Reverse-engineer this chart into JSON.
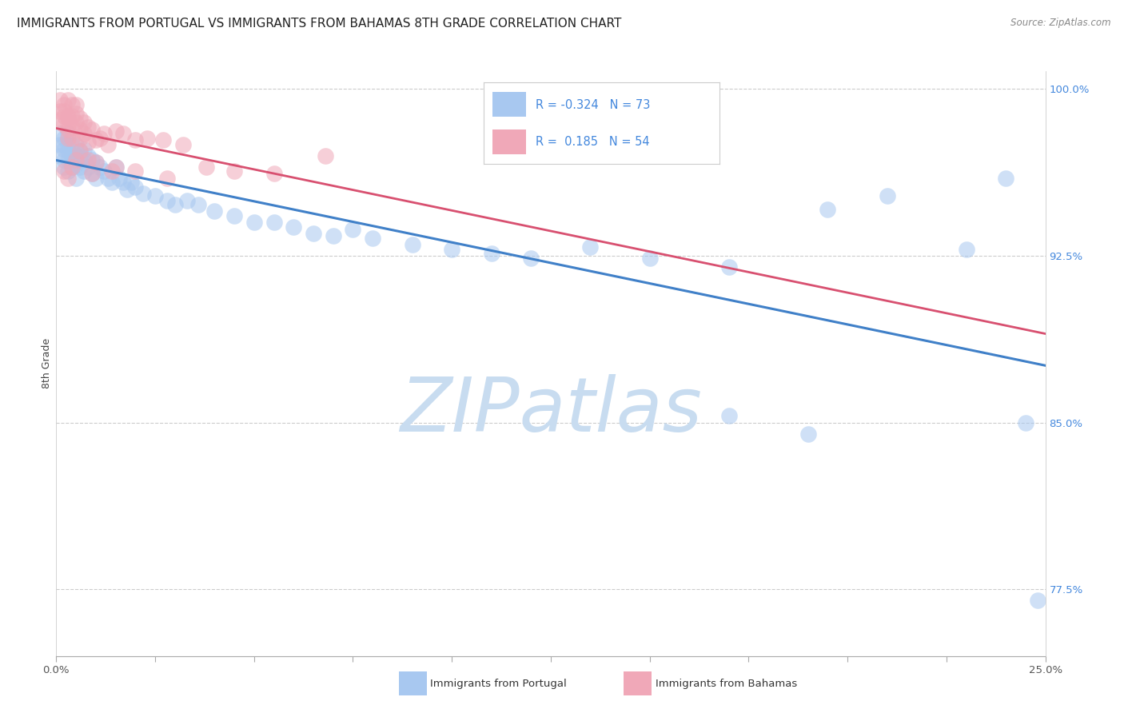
{
  "title": "IMMIGRANTS FROM PORTUGAL VS IMMIGRANTS FROM BAHAMAS 8TH GRADE CORRELATION CHART",
  "source": "Source: ZipAtlas.com",
  "ylabel": "8th Grade",
  "xlim": [
    0.0,
    0.25
  ],
  "ylim": [
    0.745,
    1.008
  ],
  "xticks": [
    0.0,
    0.025,
    0.05,
    0.075,
    0.1,
    0.125,
    0.15,
    0.175,
    0.2,
    0.225,
    0.25
  ],
  "xticklabels": [
    "0.0%",
    "",
    "",
    "",
    "",
    "",
    "",
    "",
    "",
    "",
    "25.0%"
  ],
  "yticks_right": [
    0.775,
    0.85,
    0.925,
    1.0
  ],
  "yticklabels_right": [
    "77.5%",
    "85.0%",
    "92.5%",
    "100.0%"
  ],
  "legend_blue_R": "-0.324",
  "legend_blue_N": "73",
  "legend_pink_R": "0.185",
  "legend_pink_N": "54",
  "blue_scatter_color": "#A8C8F0",
  "pink_scatter_color": "#F0A8B8",
  "blue_line_color": "#4080C8",
  "pink_line_color": "#D85070",
  "grid_color": "#CCCCCC",
  "watermark": "ZIPatlas",
  "watermark_color": "#C8DCF0",
  "title_fontsize": 11,
  "ylabel_fontsize": 9,
  "tick_fontsize": 9.5,
  "right_tick_color": "#4488DD",
  "blue_points_x": [
    0.001,
    0.001,
    0.001,
    0.002,
    0.002,
    0.002,
    0.002,
    0.002,
    0.003,
    0.003,
    0.003,
    0.003,
    0.003,
    0.004,
    0.004,
    0.004,
    0.004,
    0.005,
    0.005,
    0.005,
    0.005,
    0.006,
    0.006,
    0.006,
    0.007,
    0.007,
    0.007,
    0.008,
    0.008,
    0.009,
    0.009,
    0.01,
    0.01,
    0.011,
    0.012,
    0.013,
    0.014,
    0.015,
    0.016,
    0.017,
    0.018,
    0.019,
    0.02,
    0.022,
    0.025,
    0.028,
    0.03,
    0.033,
    0.036,
    0.04,
    0.045,
    0.05,
    0.055,
    0.06,
    0.065,
    0.07,
    0.075,
    0.08,
    0.09,
    0.1,
    0.11,
    0.12,
    0.135,
    0.15,
    0.17,
    0.195,
    0.21,
    0.23,
    0.24,
    0.17,
    0.19,
    0.245,
    0.248
  ],
  "blue_points_y": [
    0.98,
    0.975,
    0.97,
    0.978,
    0.973,
    0.968,
    0.965,
    0.975,
    0.972,
    0.968,
    0.963,
    0.975,
    0.98,
    0.97,
    0.965,
    0.975,
    0.968,
    0.97,
    0.966,
    0.975,
    0.96,
    0.97,
    0.965,
    0.972,
    0.968,
    0.963,
    0.973,
    0.965,
    0.97,
    0.962,
    0.968,
    0.967,
    0.96,
    0.965,
    0.963,
    0.96,
    0.958,
    0.965,
    0.96,
    0.958,
    0.955,
    0.958,
    0.956,
    0.953,
    0.952,
    0.95,
    0.948,
    0.95,
    0.948,
    0.945,
    0.943,
    0.94,
    0.94,
    0.938,
    0.935,
    0.934,
    0.937,
    0.933,
    0.93,
    0.928,
    0.926,
    0.924,
    0.929,
    0.924,
    0.92,
    0.946,
    0.952,
    0.928,
    0.96,
    0.853,
    0.845,
    0.85,
    0.77
  ],
  "pink_points_x": [
    0.001,
    0.001,
    0.001,
    0.002,
    0.002,
    0.002,
    0.002,
    0.003,
    0.003,
    0.003,
    0.003,
    0.003,
    0.004,
    0.004,
    0.004,
    0.005,
    0.005,
    0.005,
    0.006,
    0.006,
    0.007,
    0.007,
    0.008,
    0.008,
    0.009,
    0.01,
    0.011,
    0.012,
    0.013,
    0.015,
    0.017,
    0.02,
    0.023,
    0.027,
    0.032,
    0.038,
    0.045,
    0.055,
    0.068,
    0.002,
    0.003,
    0.004,
    0.005,
    0.006,
    0.008,
    0.01,
    0.015,
    0.02,
    0.028,
    0.003,
    0.004,
    0.006,
    0.009,
    0.014
  ],
  "pink_points_y": [
    0.995,
    0.99,
    0.986,
    0.993,
    0.988,
    0.984,
    0.99,
    0.987,
    0.982,
    0.988,
    0.995,
    0.984,
    0.988,
    0.983,
    0.993,
    0.993,
    0.985,
    0.989,
    0.987,
    0.982,
    0.985,
    0.98,
    0.976,
    0.983,
    0.982,
    0.977,
    0.978,
    0.98,
    0.975,
    0.981,
    0.98,
    0.977,
    0.978,
    0.977,
    0.975,
    0.965,
    0.963,
    0.962,
    0.97,
    0.963,
    0.96,
    0.965,
    0.968,
    0.972,
    0.968,
    0.967,
    0.965,
    0.963,
    0.96,
    0.978,
    0.978,
    0.978,
    0.962,
    0.963
  ]
}
